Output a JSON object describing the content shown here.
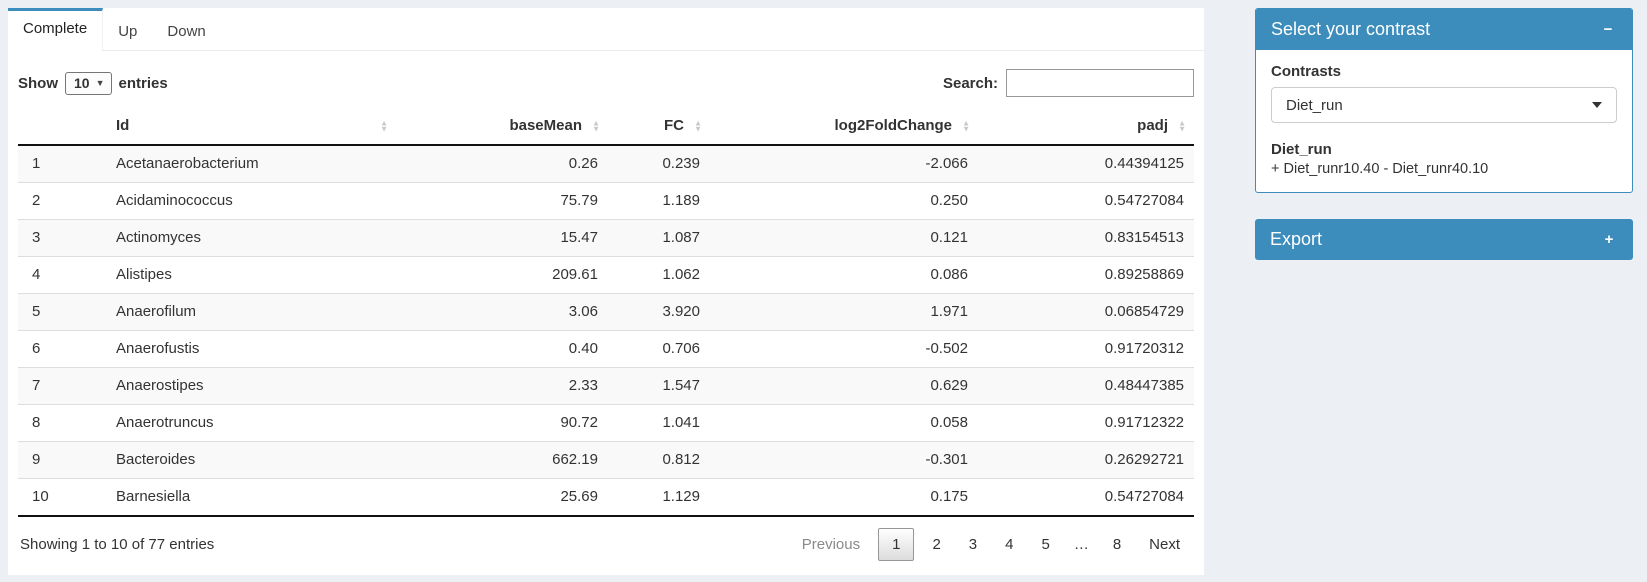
{
  "tabs": [
    {
      "label": "Complete",
      "active": true
    },
    {
      "label": "Up",
      "active": false
    },
    {
      "label": "Down",
      "active": false
    }
  ],
  "table_controls": {
    "show_label": "Show",
    "page_size": "10",
    "entries_label": "entries",
    "search_label": "Search:",
    "search_value": ""
  },
  "table": {
    "columns": [
      {
        "label": "Id",
        "align": "left"
      },
      {
        "label": "baseMean",
        "align": "right"
      },
      {
        "label": "FC",
        "align": "right"
      },
      {
        "label": "log2FoldChange",
        "align": "right"
      },
      {
        "label": "padj",
        "align": "right"
      }
    ],
    "rows": [
      [
        "1",
        "Acetanaerobacterium",
        "0.26",
        "0.239",
        "-2.066",
        "0.44394125"
      ],
      [
        "2",
        "Acidaminococcus",
        "75.79",
        "1.189",
        "0.250",
        "0.54727084"
      ],
      [
        "3",
        "Actinomyces",
        "15.47",
        "1.087",
        "0.121",
        "0.83154513"
      ],
      [
        "4",
        "Alistipes",
        "209.61",
        "1.062",
        "0.086",
        "0.89258869"
      ],
      [
        "5",
        "Anaerofilum",
        "3.06",
        "3.920",
        "1.971",
        "0.06854729"
      ],
      [
        "6",
        "Anaerofustis",
        "0.40",
        "0.706",
        "-0.502",
        "0.91720312"
      ],
      [
        "7",
        "Anaerostipes",
        "2.33",
        "1.547",
        "0.629",
        "0.48447385"
      ],
      [
        "8",
        "Anaerotruncus",
        "90.72",
        "1.041",
        "0.058",
        "0.91712322"
      ],
      [
        "9",
        "Bacteroides",
        "662.19",
        "0.812",
        "-0.301",
        "0.26292721"
      ],
      [
        "10",
        "Barnesiella",
        "25.69",
        "1.129",
        "0.175",
        "0.54727084"
      ]
    ]
  },
  "footer": {
    "info": "Showing 1 to 10 of 77 entries",
    "pagination": [
      {
        "label": "Previous",
        "type": "disabled"
      },
      {
        "label": "1",
        "type": "current"
      },
      {
        "label": "2",
        "type": "page"
      },
      {
        "label": "3",
        "type": "page"
      },
      {
        "label": "4",
        "type": "page"
      },
      {
        "label": "5",
        "type": "page"
      },
      {
        "label": "…",
        "type": "ellipsis"
      },
      {
        "label": "8",
        "type": "page"
      },
      {
        "label": "Next",
        "type": "page"
      }
    ]
  },
  "contrast_panel": {
    "title": "Select your contrast",
    "collapse_icon": "−",
    "contrasts_label": "Contrasts",
    "selected_contrast": "Diet_run",
    "contrast_name": "Diet_run",
    "contrast_formula": "+ Diet_runr10.40 - Diet_runr40.10"
  },
  "export_panel": {
    "title": "Export",
    "expand_icon": "+"
  },
  "icons": {
    "sort_asc": "▲",
    "sort_desc": "▼",
    "select_caret": "▼"
  },
  "colors": {
    "accent": "#3c8dbc",
    "page_bg": "#ecf0f5",
    "stripe": "#f9f9f9",
    "dark_border": "#111111"
  }
}
